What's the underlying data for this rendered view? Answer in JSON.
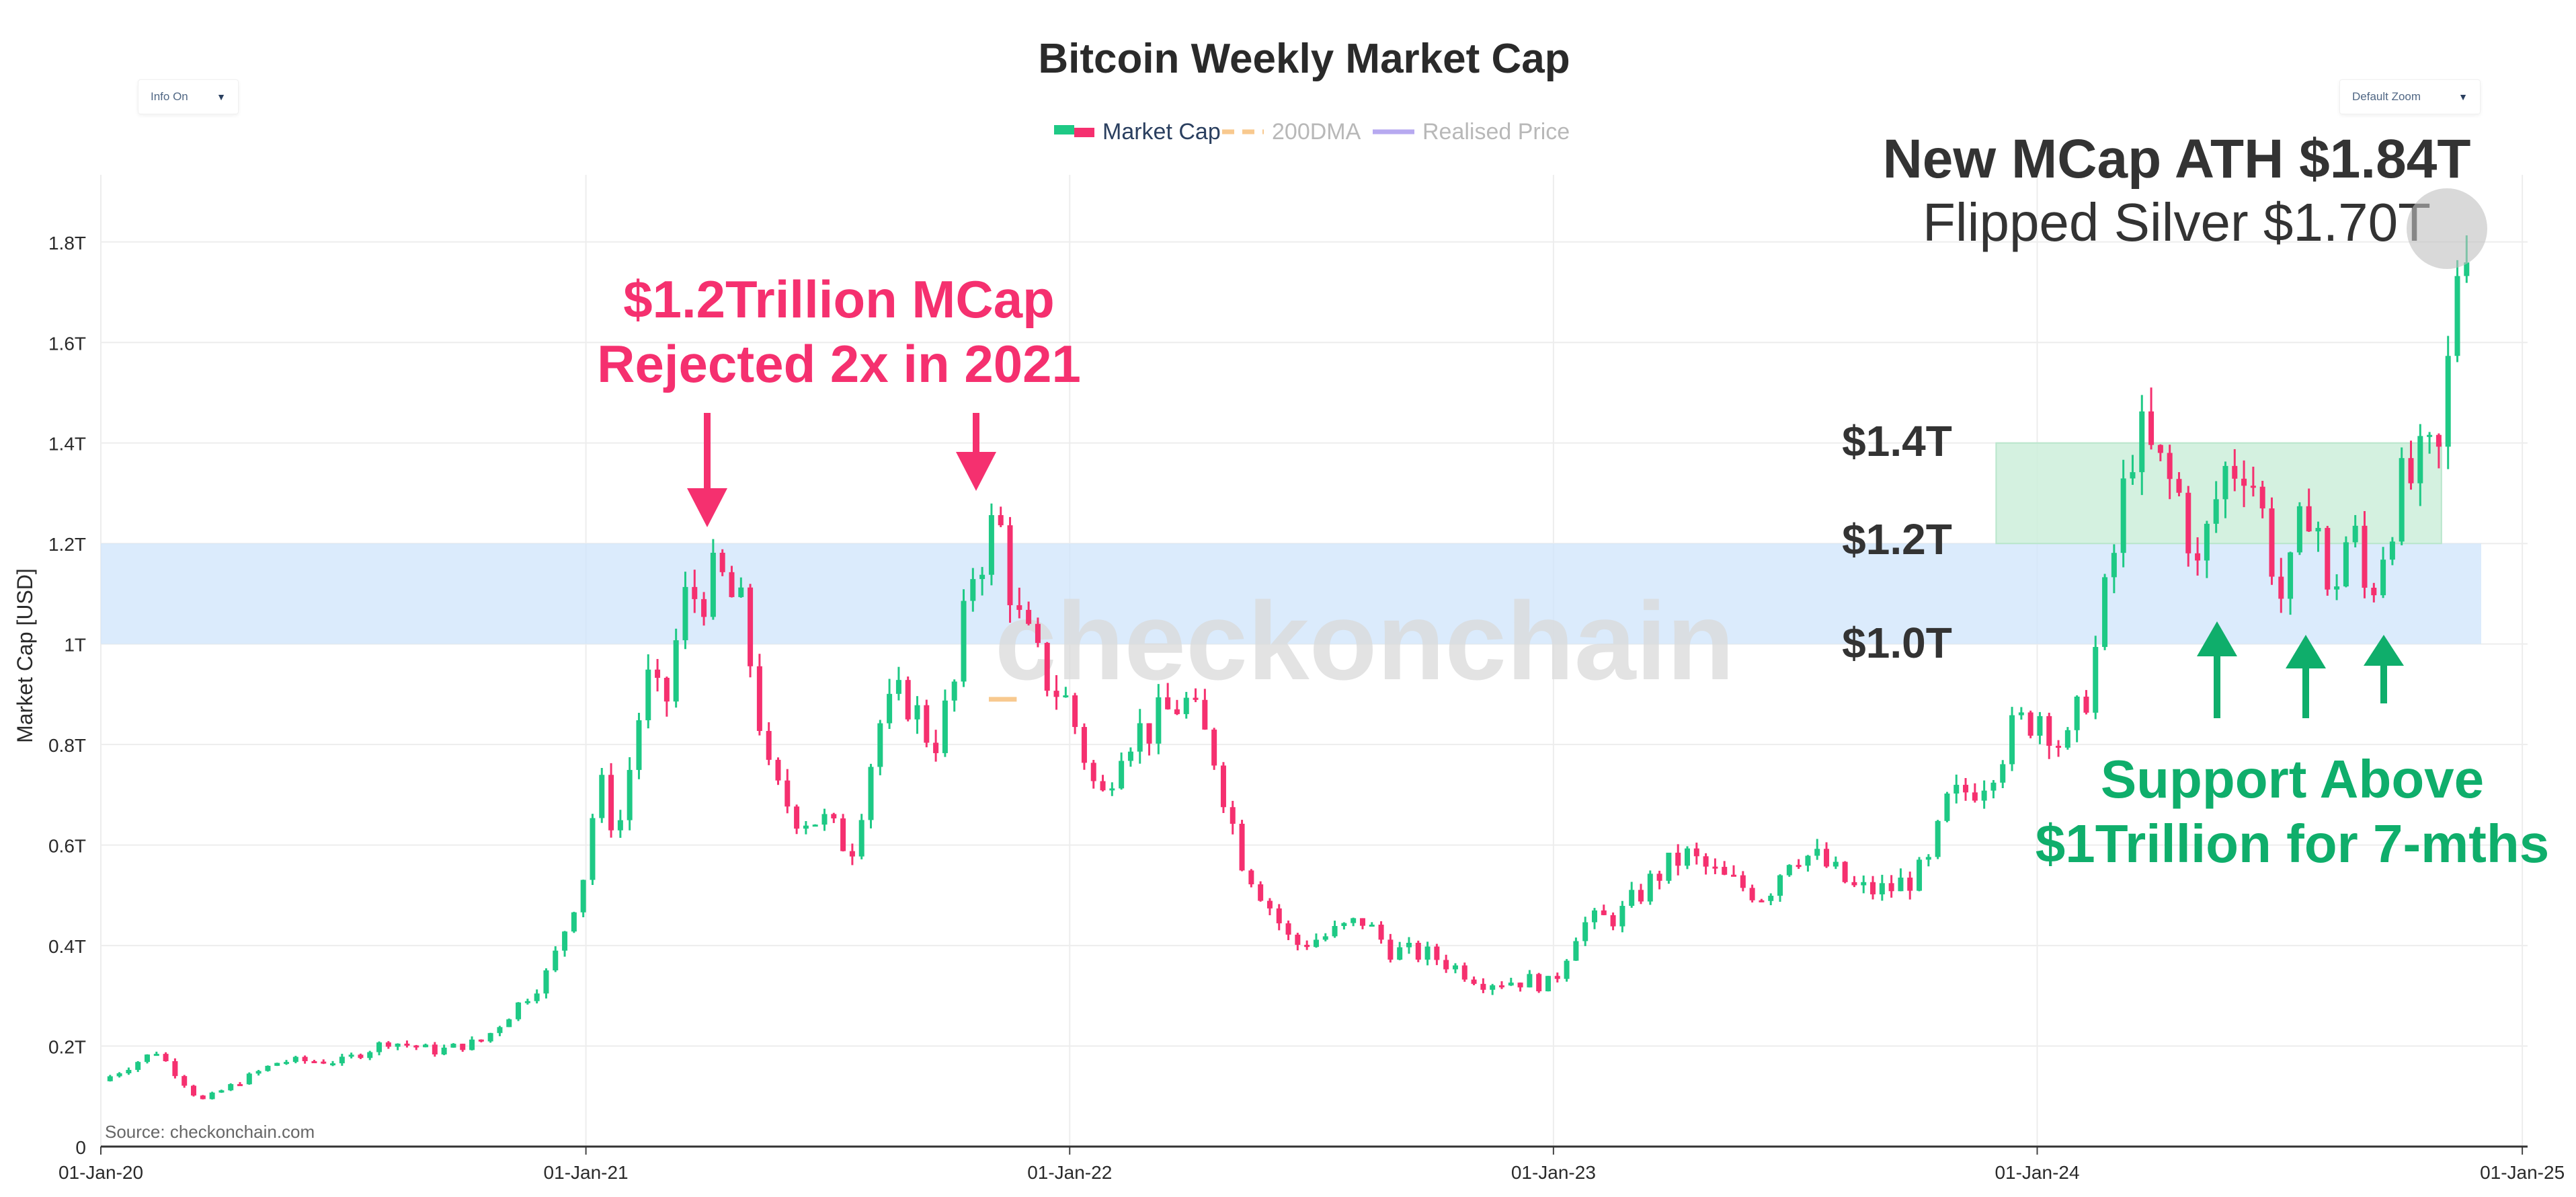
{
  "controls": {
    "info_label": "Info On",
    "zoom_label": "Default Zoom"
  },
  "watermark": "checkonchain",
  "source": "Source: checkonchain.com",
  "annotations": {
    "rejected_line1": "$1.2Trillion MCap",
    "rejected_line2": "Rejected 2x in 2021",
    "ath_line1": "New MCap ATH $1.84T",
    "ath_line2": "Flipped Silver $1.70T",
    "level_14": "$1.4T",
    "level_12": "$1.2T",
    "level_10": "$1.0T",
    "support_line1": "Support Above",
    "support_line2": "$1Trillion for 7-mths"
  },
  "colors": {
    "up": "#1ec985",
    "down": "#f5306f",
    "ath_text": "#333333",
    "annotation_pink": "#f5306f",
    "annotation_green": "#0fae6b",
    "band_blue": "#cfe4fb",
    "band_green": "#cdeedb",
    "dma": "#f8c98f",
    "realised": "#b7a9f0"
  },
  "chart_data": {
    "type": "candlestick",
    "title": "Bitcoin Weekly Market Cap",
    "ylabel": "Market Cap [USD]",
    "xlabel": "",
    "ylim": [
      0,
      1.88
    ],
    "y_ticks": [
      0,
      0.2,
      0.4,
      0.6,
      0.8,
      1.0,
      1.2,
      1.4,
      1.6,
      1.8
    ],
    "y_tick_labels": [
      "0",
      "0.2T",
      "0.4T",
      "0.6T",
      "0.8T",
      "1T",
      "1.2T",
      "1.4T",
      "1.6T",
      "1.8T"
    ],
    "x_ticks": [
      "2020-01-01",
      "2021-01-01",
      "2022-01-01",
      "2023-01-01",
      "2024-01-01",
      "2025-01-01"
    ],
    "x_tick_labels": [
      "01-Jan-20",
      "01-Jan-21",
      "01-Jan-22",
      "01-Jan-23",
      "01-Jan-24",
      "01-Jan-25"
    ],
    "xlim": [
      "2020-01-01",
      "2025-01-05"
    ],
    "legend": [
      "Market Cap",
      "200DMA",
      "Realised Price"
    ],
    "legend_position": "top-center",
    "grid": true,
    "bands": [
      {
        "y0": 1.0,
        "y1": 1.2,
        "x0": "2020-01-01",
        "x1": "2024-12-01",
        "color": "blue"
      },
      {
        "y0": 1.2,
        "y1": 1.4,
        "x0": "2023-12-01",
        "x1": "2024-11-01",
        "color": "green"
      }
    ],
    "series_200dma": [
      {
        "date": "2021-11-01",
        "value": 0.89
      },
      {
        "date": "2021-11-22",
        "value": 0.89
      }
    ],
    "keypoints": [
      [
        "2020-01-01",
        0.13
      ],
      [
        "2020-02-12",
        0.19
      ],
      [
        "2020-03-16",
        0.09
      ],
      [
        "2020-04-15",
        0.13
      ],
      [
        "2020-05-15",
        0.17
      ],
      [
        "2020-07-01",
        0.17
      ],
      [
        "2020-08-05",
        0.21
      ],
      [
        "2020-09-10",
        0.19
      ],
      [
        "2020-10-15",
        0.21
      ],
      [
        "2020-11-10",
        0.28
      ],
      [
        "2020-12-05",
        0.35
      ],
      [
        "2020-12-31",
        0.55
      ],
      [
        "2021-01-10",
        0.73
      ],
      [
        "2021-01-25",
        0.62
      ],
      [
        "2021-02-15",
        0.93
      ],
      [
        "2021-03-01",
        0.86
      ],
      [
        "2021-03-15",
        1.08
      ],
      [
        "2021-04-12",
        1.13
      ],
      [
        "2021-04-30",
        1.05
      ],
      [
        "2021-05-20",
        0.72
      ],
      [
        "2021-06-10",
        0.66
      ],
      [
        "2021-06-28",
        0.65
      ],
      [
        "2021-07-20",
        0.59
      ],
      [
        "2021-08-10",
        0.84
      ],
      [
        "2021-08-30",
        0.9
      ],
      [
        "2021-09-20",
        0.8
      ],
      [
        "2021-10-05",
        0.9
      ],
      [
        "2021-10-20",
        1.15
      ],
      [
        "2021-11-08",
        1.25
      ],
      [
        "2021-11-22",
        1.05
      ],
      [
        "2021-12-10",
        0.95
      ],
      [
        "2021-12-31",
        0.88
      ],
      [
        "2022-01-24",
        0.68
      ],
      [
        "2022-02-10",
        0.82
      ],
      [
        "2022-03-01",
        0.83
      ],
      [
        "2022-03-28",
        0.89
      ],
      [
        "2022-04-20",
        0.78
      ],
      [
        "2022-05-10",
        0.58
      ],
      [
        "2022-06-18",
        0.4
      ],
      [
        "2022-07-15",
        0.42
      ],
      [
        "2022-08-10",
        0.45
      ],
      [
        "2022-09-01",
        0.39
      ],
      [
        "2022-10-01",
        0.38
      ],
      [
        "2022-11-09",
        0.33
      ],
      [
        "2022-12-15",
        0.33
      ],
      [
        "2022-12-31",
        0.32
      ],
      [
        "2023-01-20",
        0.44
      ],
      [
        "2023-02-20",
        0.46
      ],
      [
        "2023-03-20",
        0.54
      ],
      [
        "2023-04-10",
        0.58
      ],
      [
        "2023-05-10",
        0.53
      ],
      [
        "2023-06-10",
        0.5
      ],
      [
        "2023-06-30",
        0.59
      ],
      [
        "2023-07-20",
        0.57
      ],
      [
        "2023-08-17",
        0.51
      ],
      [
        "2023-09-10",
        0.51
      ],
      [
        "2023-10-10",
        0.55
      ],
      [
        "2023-10-25",
        0.68
      ],
      [
        "2023-11-20",
        0.73
      ],
      [
        "2023-12-15",
        0.83
      ],
      [
        "2024-01-05",
        0.87
      ],
      [
        "2024-01-22",
        0.78
      ],
      [
        "2024-02-10",
        0.93
      ],
      [
        "2024-02-28",
        1.18
      ],
      [
        "2024-03-14",
        1.42
      ],
      [
        "2024-04-01",
        1.35
      ],
      [
        "2024-04-20",
        1.28
      ],
      [
        "2024-05-01",
        1.14
      ],
      [
        "2024-05-20",
        1.34
      ],
      [
        "2024-06-07",
        1.38
      ],
      [
        "2024-06-24",
        1.2
      ],
      [
        "2024-07-05",
        1.07
      ],
      [
        "2024-07-28",
        1.34
      ],
      [
        "2024-08-05",
        1.06
      ],
      [
        "2024-08-25",
        1.24
      ],
      [
        "2024-09-06",
        1.08
      ],
      [
        "2024-09-27",
        1.29
      ],
      [
        "2024-10-15",
        1.34
      ],
      [
        "2024-11-01",
        1.37
      ],
      [
        "2024-11-12",
        1.75
      ],
      [
        "2024-11-20",
        1.84
      ]
    ]
  }
}
